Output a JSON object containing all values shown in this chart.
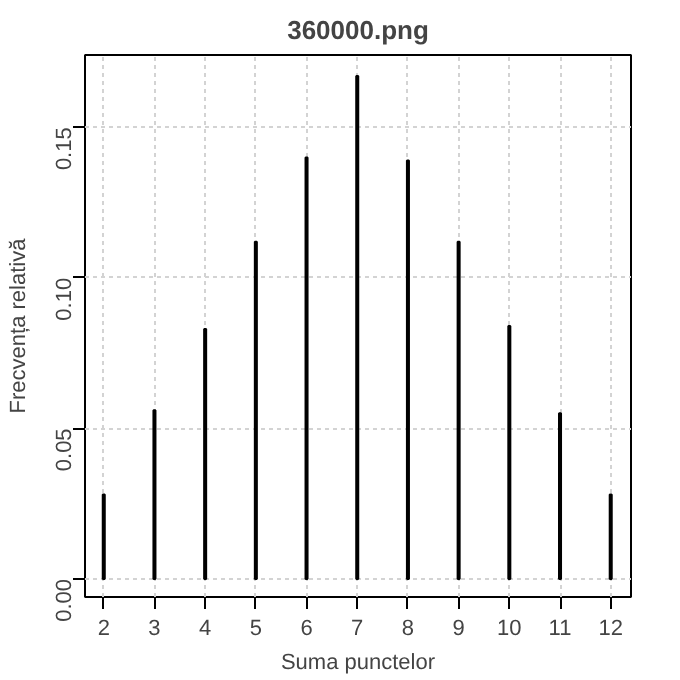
{
  "chart_data": {
    "type": "bar",
    "title": "360000.png",
    "xlabel": "Suma punctelor",
    "ylabel": "Frecvența relativă",
    "x": [
      2,
      3,
      4,
      5,
      6,
      7,
      8,
      9,
      10,
      11,
      12
    ],
    "series": [
      {
        "color": "#000000",
        "values": [
          0.028,
          0.056,
          0.083,
          0.112,
          0.14,
          0.167,
          0.139,
          0.112,
          0.084,
          0.055,
          0.028
        ]
      }
    ],
    "xlim": [
      1.63,
      12.4
    ],
    "ylim": [
      -0.006,
      0.174
    ],
    "xticks": [
      2,
      3,
      4,
      5,
      6,
      7,
      8,
      9,
      10,
      11,
      12
    ],
    "yticks": [
      {
        "value": 0,
        "label": "0.00"
      },
      {
        "value": 0.05,
        "label": "0.05"
      },
      {
        "value": 0.1,
        "label": "0.10"
      },
      {
        "value": 0.15,
        "label": "0.15"
      }
    ],
    "grid": true
  }
}
